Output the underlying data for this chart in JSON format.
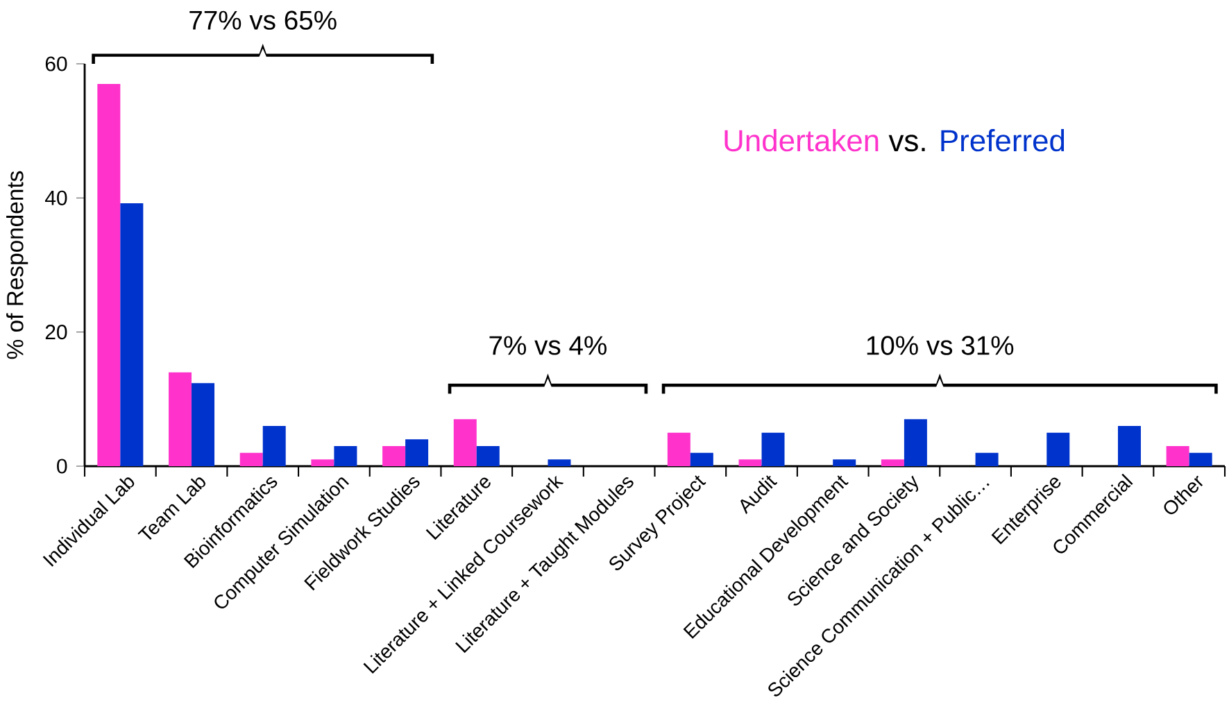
{
  "chart_data": {
    "type": "bar",
    "ylabel": "% of Respondents",
    "categories": [
      "Individual Lab",
      "Team Lab",
      "Bioinformatics",
      "Computer Simulation",
      "Fieldwork Studies",
      "Literature",
      "Literature + Linked Coursework",
      "Literature + Taught Modules",
      "Survey Project",
      "Audit",
      "Educational Development",
      "Science and Society",
      "Science Communication + Public…",
      "Enterprise",
      "Commercial",
      "Other"
    ],
    "series": [
      {
        "name": "Undertaken",
        "color": "#ff33cc",
        "values": [
          57,
          14,
          2,
          1,
          3,
          7,
          0,
          0,
          5,
          1,
          0,
          1,
          0,
          0,
          0,
          3
        ]
      },
      {
        "name": "Preferred",
        "color": "#0033cc",
        "values": [
          39.2,
          12.4,
          6,
          3,
          4,
          3,
          1,
          0,
          2,
          5,
          1,
          7,
          2,
          5,
          6,
          2
        ]
      }
    ],
    "ylim": [
      0,
      60
    ],
    "yticks": [
      0,
      20,
      40,
      60
    ],
    "grid": false,
    "legend": "top right",
    "annotations": [
      "77% vs 65%",
      "7% vs 4%",
      "10% vs 31%",
      "vs."
    ]
  }
}
